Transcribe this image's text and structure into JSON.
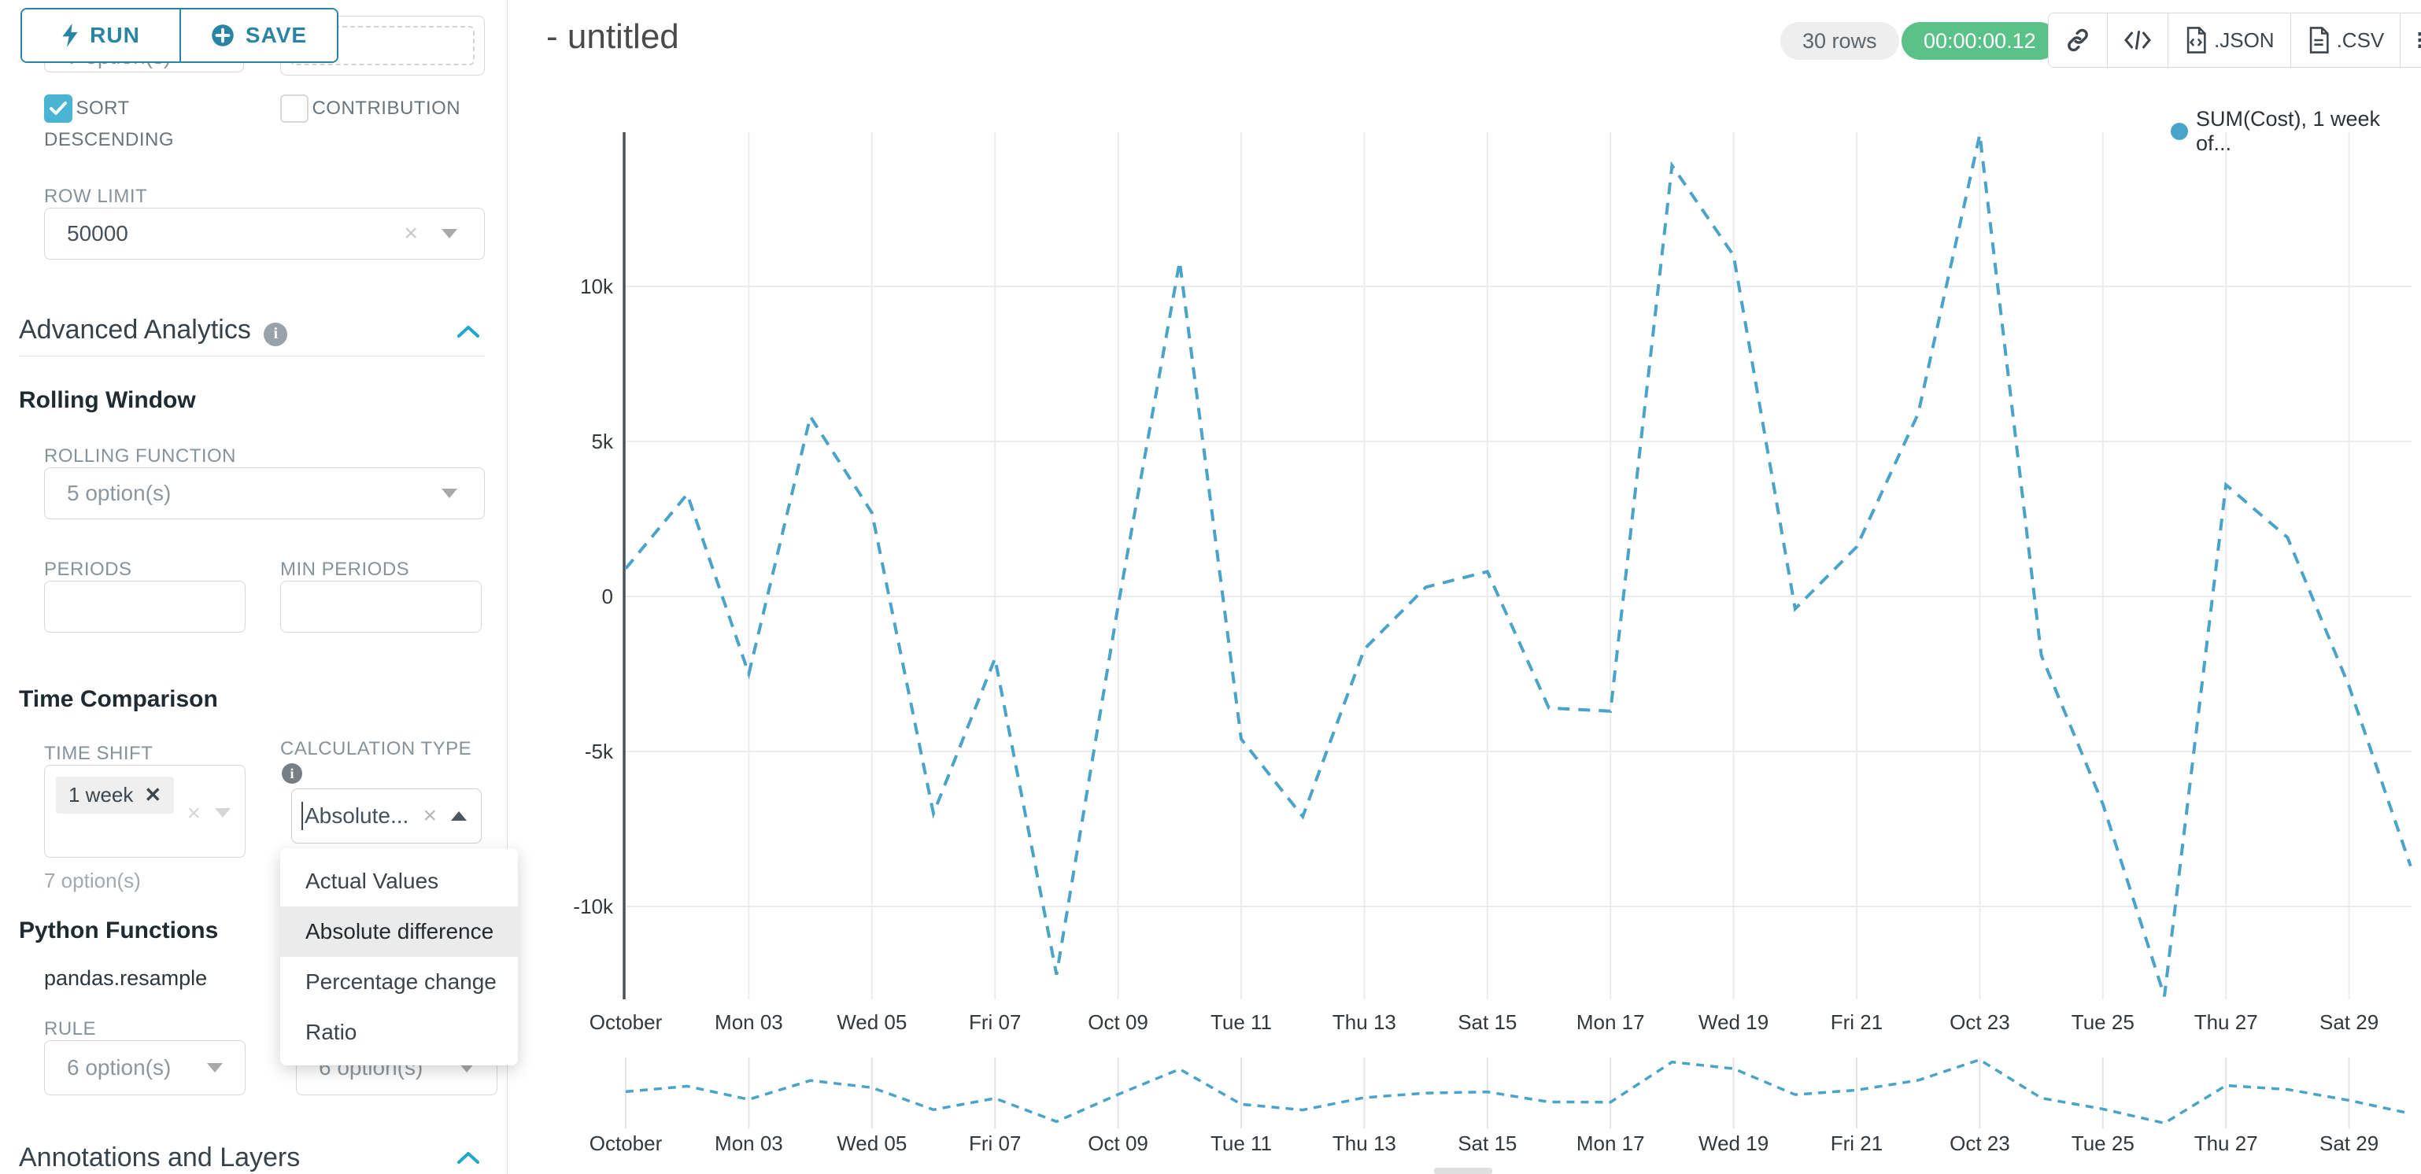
{
  "colors": {
    "accent": "#20a7c9",
    "button_teal": "#2a84a4",
    "checkbox_teal": "#49b5d3",
    "timer_green": "#5ac189",
    "line_blue": "#4aa3c9",
    "grid_grey": "#ececec"
  },
  "toolbar": {
    "run_label": "RUN",
    "save_label": "SAVE"
  },
  "panel": {
    "partial_select_value": "7 option(s)",
    "sort_descending_label": "SORT DESCENDING",
    "contribution_label": "CONTRIBUTION",
    "row_limit_label": "ROW LIMIT",
    "row_limit_value": "50000",
    "advanced_analytics": {
      "title": "Advanced Analytics"
    },
    "rolling_window": {
      "title": "Rolling Window",
      "rolling_function_label": "ROLLING FUNCTION",
      "rolling_function_value": "5 option(s)",
      "periods_label": "PERIODS",
      "min_periods_label": "MIN PERIODS"
    },
    "time_comparison": {
      "title": "Time Comparison",
      "time_shift_label": "TIME SHIFT",
      "time_shift_tag": "1 week",
      "time_shift_hint": "7 option(s)",
      "calculation_type_label": "CALCULATION TYPE",
      "calculation_type_value": "Absolute...",
      "dropdown_options": [
        "Actual Values",
        "Absolute difference",
        "Percentage change",
        "Ratio"
      ],
      "selected_option": "Absolute difference"
    },
    "python_functions": {
      "title": "Python Functions",
      "function_name": "pandas.resample",
      "rule_label": "RULE",
      "rule_value": "6 option(s)",
      "fill_value": "6 option(s)"
    },
    "annotations": {
      "title": "Annotations and Layers"
    }
  },
  "header": {
    "title": "- untitled",
    "rows_badge": "30 rows",
    "timer": "00:00:00.12",
    "json_label": ".JSON",
    "csv_label": ".CSV"
  },
  "legend": {
    "label": "SUM(Cost), 1 week of...",
    "color": "#4aa3c9"
  },
  "chart_data": {
    "type": "line",
    "title": "- untitled",
    "x_unit": "day of October",
    "x": [
      1,
      2,
      3,
      4,
      5,
      6,
      7,
      8,
      9,
      10,
      11,
      12,
      13,
      14,
      15,
      16,
      17,
      18,
      19,
      20,
      21,
      22,
      23,
      24,
      25,
      26,
      27,
      28,
      29,
      30
    ],
    "x_tick_days": [
      1,
      3,
      5,
      7,
      9,
      11,
      13,
      15,
      17,
      19,
      21,
      23,
      25,
      27,
      29
    ],
    "x_tick_labels": [
      "October",
      "Mon 03",
      "Wed 05",
      "Fri 07",
      "Oct 09",
      "Tue 11",
      "Thu 13",
      "Sat 15",
      "Mon 17",
      "Wed 19",
      "Fri 21",
      "Oct 23",
      "Tue 25",
      "Thu 27",
      "Sat 29"
    ],
    "y_ticks": [
      {
        "label": "10k",
        "value": 10000
      },
      {
        "label": "5k",
        "value": 5000
      },
      {
        "label": "0",
        "value": 0
      },
      {
        "label": "-5k",
        "value": -5000
      },
      {
        "label": "-10k",
        "value": -10000
      }
    ],
    "ylim": [
      -13500,
      15000
    ],
    "grid": true,
    "legend_position": "top-right",
    "series": [
      {
        "name": "SUM(Cost), 1 week of...",
        "color": "#4aa3c9",
        "dashed": true,
        "values": [
          900,
          3300,
          -2500,
          5800,
          2700,
          -7000,
          -2000,
          -12200,
          -300,
          10800,
          -4600,
          -7100,
          -1700,
          300,
          800,
          -3600,
          -3700,
          13900,
          11000,
          -400,
          1600,
          5900,
          14900,
          -1900,
          -6700,
          -12900,
          3600,
          1900,
          -2900,
          -8700
        ]
      }
    ],
    "navigator": {
      "present": true,
      "shows": "same series preview with same x tick labels"
    }
  }
}
